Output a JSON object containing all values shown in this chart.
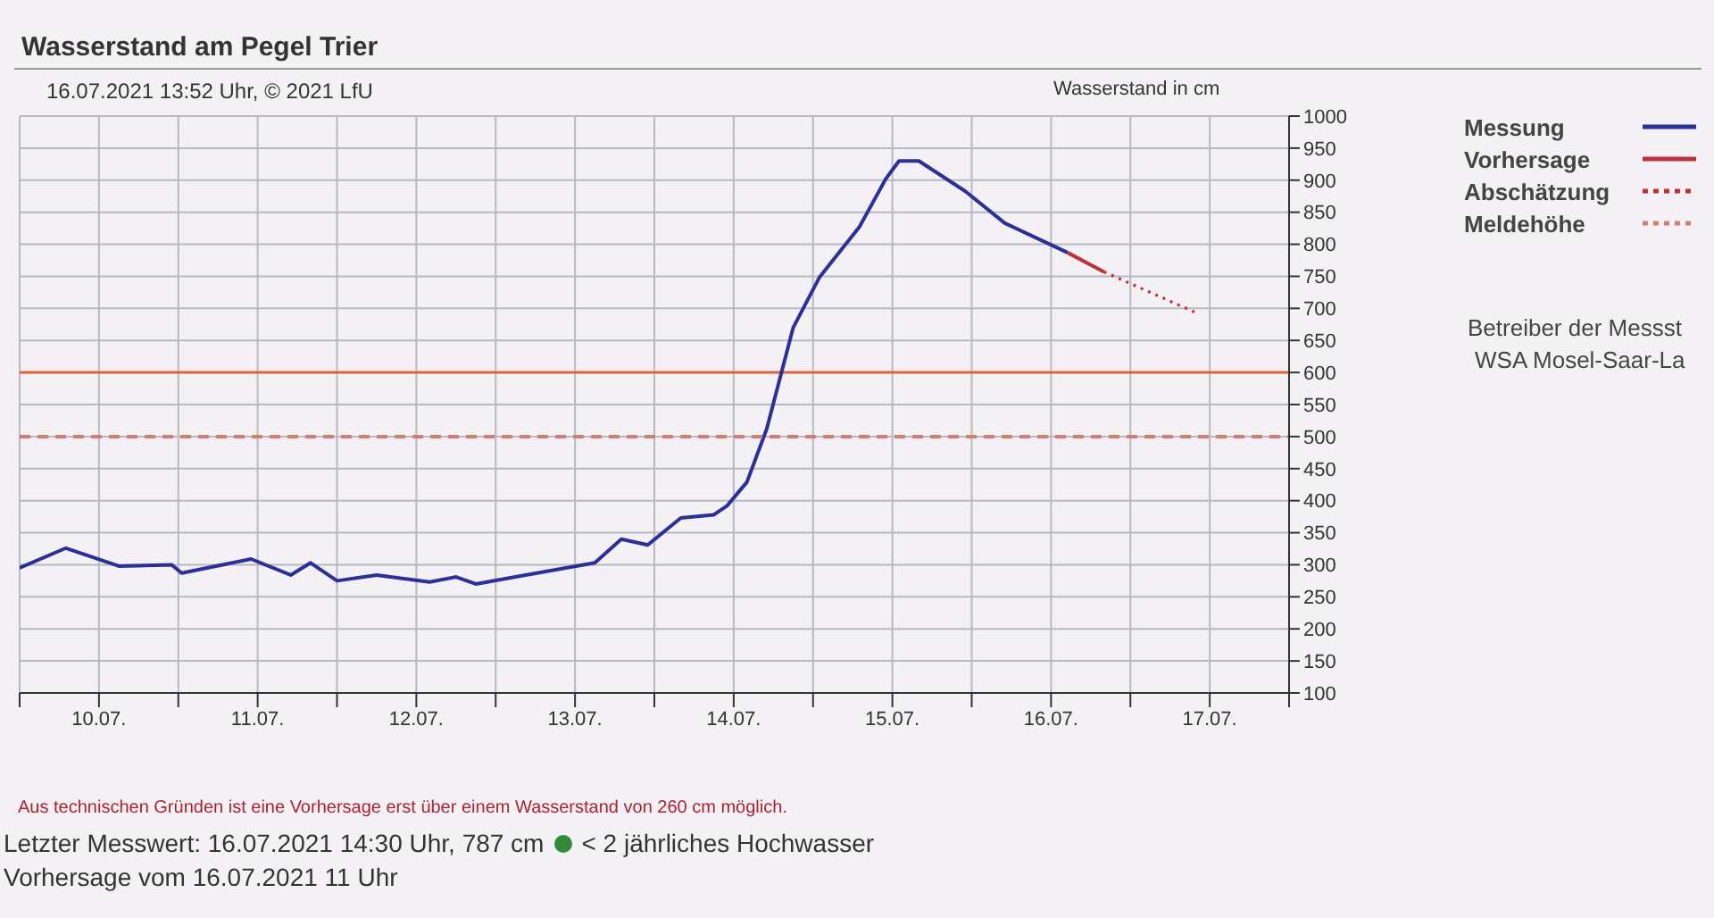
{
  "chart_data": {
    "type": "line",
    "title": "Wasserstand am Pegel Trier",
    "subtitle": "16.07.2021 13:52 Uhr, © 2021 LfU",
    "ylabel": "Wasserstand in cm",
    "xlim": [
      "2021-07-10T00:00",
      "2021-07-18T00:00"
    ],
    "xticks": [
      {
        "value": "2021-07-10T00:00",
        "label": null
      },
      {
        "value": "2021-07-10T12:00",
        "label": "10.07."
      },
      {
        "value": "2021-07-11T00:00",
        "label": null
      },
      {
        "value": "2021-07-11T12:00",
        "label": "11.07."
      },
      {
        "value": "2021-07-12T00:00",
        "label": null
      },
      {
        "value": "2021-07-12T12:00",
        "label": "12.07."
      },
      {
        "value": "2021-07-13T00:00",
        "label": null
      },
      {
        "value": "2021-07-13T12:00",
        "label": "13.07."
      },
      {
        "value": "2021-07-14T00:00",
        "label": null
      },
      {
        "value": "2021-07-14T12:00",
        "label": "14.07."
      },
      {
        "value": "2021-07-15T00:00",
        "label": null
      },
      {
        "value": "2021-07-15T12:00",
        "label": "15.07."
      },
      {
        "value": "2021-07-16T00:00",
        "label": null
      },
      {
        "value": "2021-07-16T12:00",
        "label": "16.07."
      },
      {
        "value": "2021-07-17T00:00",
        "label": null
      },
      {
        "value": "2021-07-17T12:00",
        "label": "17.07."
      },
      {
        "value": "2021-07-18T00:00",
        "label": null
      }
    ],
    "ylim": [
      100,
      1000
    ],
    "yticks": [
      100,
      150,
      200,
      250,
      300,
      350,
      400,
      450,
      500,
      550,
      600,
      650,
      700,
      750,
      800,
      850,
      900,
      950,
      1000
    ],
    "grid": true,
    "legend": "top right",
    "series": [
      {
        "name": "Messung",
        "color": "#2b2f9e",
        "line_style": "solid",
        "x": [
          "2021-07-10T00:00",
          "2021-07-10T07:00",
          "2021-07-10T15:00",
          "2021-07-10T23:00",
          "2021-07-11T00:30",
          "2021-07-11T11:00",
          "2021-07-11T17:00",
          "2021-07-11T20:00",
          "2021-07-12T00:00",
          "2021-07-12T06:00",
          "2021-07-12T14:00",
          "2021-07-12T18:00",
          "2021-07-12T21:00",
          "2021-07-13T03:00",
          "2021-07-13T15:00",
          "2021-07-13T19:00",
          "2021-07-13T23:00",
          "2021-07-14T04:00",
          "2021-07-14T09:00",
          "2021-07-14T11:00",
          "2021-07-14T14:00",
          "2021-07-14T17:00",
          "2021-07-14T21:00",
          "2021-07-15T01:00",
          "2021-07-15T07:00",
          "2021-07-15T11:00",
          "2021-07-15T13:00",
          "2021-07-15T16:00",
          "2021-07-15T23:00",
          "2021-07-16T05:00",
          "2021-07-16T14:30"
        ],
        "values": [
          295,
          326,
          298,
          300,
          287,
          309,
          284,
          303,
          275,
          284,
          273,
          281,
          270,
          281,
          303,
          340,
          331,
          373,
          378,
          392,
          429,
          512,
          670,
          749,
          827,
          902,
          930,
          930,
          883,
          833,
          787
        ]
      },
      {
        "name": "Vorhersage",
        "color": "#c0303a",
        "line_style": "solid",
        "x": [
          "2021-07-16T14:30",
          "2021-07-16T20:00"
        ],
        "values": [
          787,
          757
        ]
      },
      {
        "name": "Abschätzung",
        "color": "#c0303a",
        "line_style": "dotted",
        "x": [
          "2021-07-16T20:00",
          "2021-07-17T10:00"
        ],
        "values": [
          757,
          693
        ]
      },
      {
        "name": "Meldehöhe",
        "color": "#d08070",
        "line_style": "dashed",
        "x": [
          "2021-07-10T00:00",
          "2021-07-18T00:00"
        ],
        "values": [
          500,
          500
        ]
      }
    ],
    "ref_lines": [
      {
        "axis": "y",
        "value": 600,
        "label": null,
        "color": "#e06040",
        "line_style": "solid"
      }
    ],
    "annotations": [
      "Betreiber der Messst",
      "WSA Mosel-Saar-La",
      "Aus technischen Gründen ist eine Vorhersage erst über einem Wasserstand von 260 cm möglich.",
      "Letzter Messwert: 16.07.2021 14:30 Uhr, 787 cm",
      "< 2 jährliches Hochwasser",
      "Vorhersage vom 16.07.2021 11 Uhr"
    ]
  }
}
